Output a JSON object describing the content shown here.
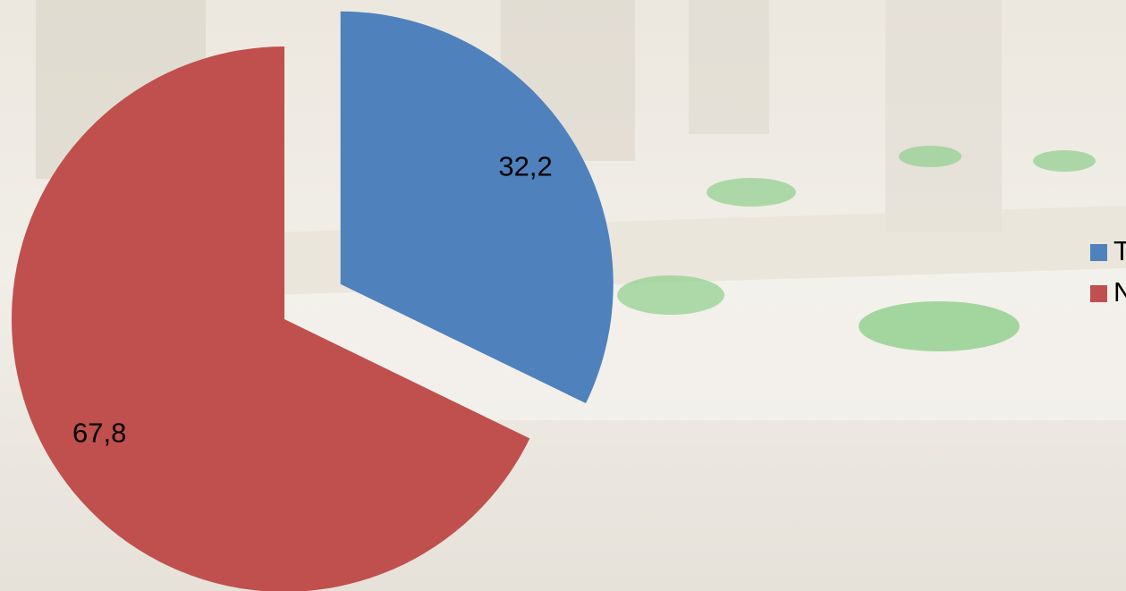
{
  "chart_data": {
    "type": "pie",
    "categories": [
      "Tak",
      "Nie"
    ],
    "values": [
      32.2,
      67.8
    ],
    "value_labels": [
      "32,2",
      "67,8"
    ],
    "colors": [
      "#4f81bd",
      "#c0504d"
    ],
    "legend": "right"
  }
}
